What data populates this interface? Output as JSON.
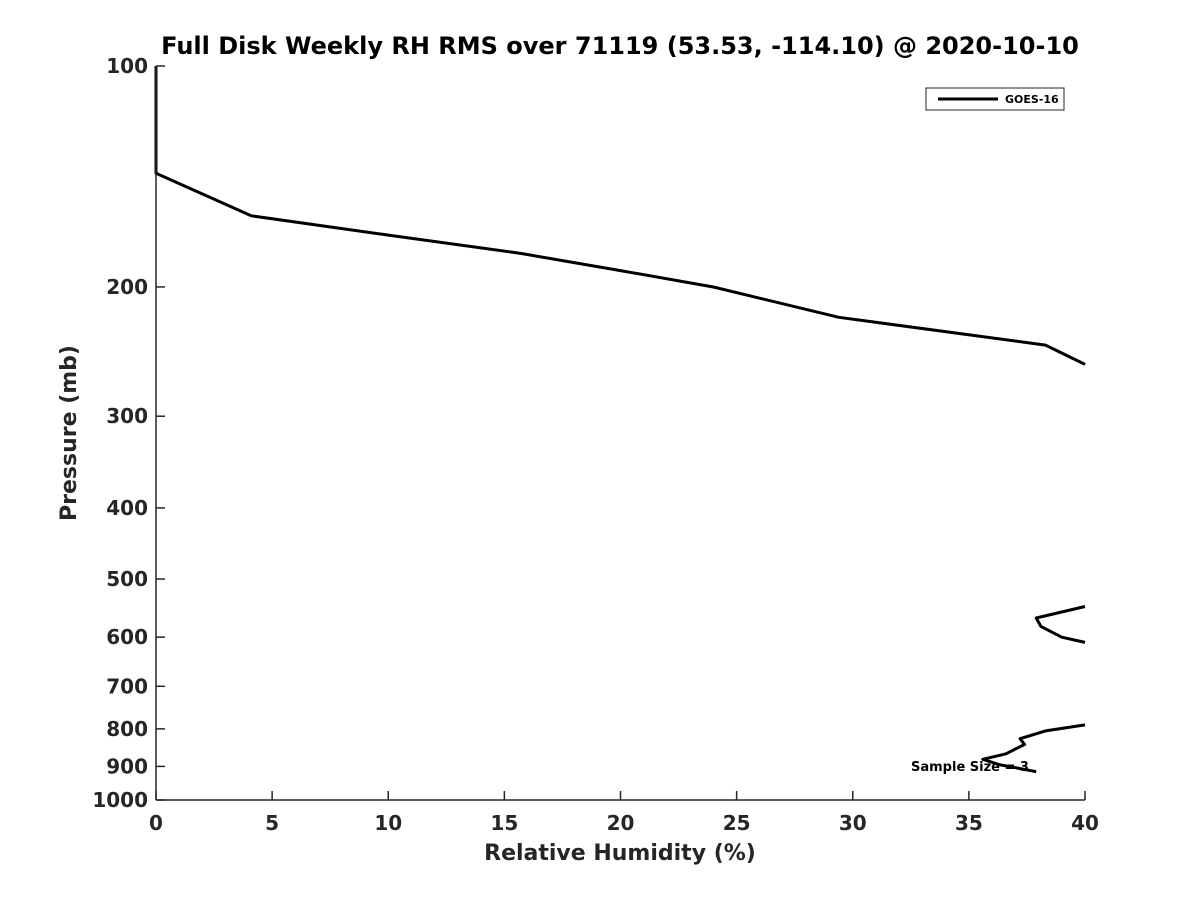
{
  "chart_data": {
    "type": "line",
    "title": "Full Disk Weekly RH RMS over 71119 (53.53, -114.10) @ 2020-10-10",
    "xlabel": "Relative Humidity (%)",
    "ylabel": "Pressure (mb)",
    "xlim": [
      0,
      40
    ],
    "ylim": [
      100,
      1000
    ],
    "yscale": "log",
    "y_reversed": true,
    "grid": false,
    "x_ticks": [
      0,
      5,
      10,
      15,
      20,
      25,
      30,
      35,
      40
    ],
    "x_tick_labels": [
      "0",
      "5",
      "10",
      "15",
      "20",
      "25",
      "30",
      "35",
      "40"
    ],
    "y_ticks": [
      100,
      200,
      300,
      400,
      500,
      600,
      700,
      800,
      900,
      1000
    ],
    "y_tick_labels": [
      "100",
      "200",
      "300",
      "400",
      "500",
      "600",
      "700",
      "800",
      "900",
      "1000"
    ],
    "legend": {
      "position": "top-right",
      "entries": [
        "GOES-16"
      ]
    },
    "annotation": "Sample Size = 3",
    "series": [
      {
        "name": "GOES-16",
        "color": "#000000",
        "segments": [
          [
            {
              "x": 0.0,
              "y": 100
            },
            {
              "x": 0.0,
              "y": 130
            },
            {
              "x": 0.0,
              "y": 140
            },
            {
              "x": 4.1,
              "y": 160
            },
            {
              "x": 10.0,
              "y": 170
            },
            {
              "x": 15.7,
              "y": 180
            },
            {
              "x": 20.0,
              "y": 190
            },
            {
              "x": 24.0,
              "y": 200
            },
            {
              "x": 29.4,
              "y": 220
            },
            {
              "x": 38.3,
              "y": 240
            },
            {
              "x": 40.0,
              "y": 255
            }
          ],
          [
            {
              "x": 40.0,
              "y": 545
            },
            {
              "x": 37.9,
              "y": 565
            },
            {
              "x": 38.1,
              "y": 580
            },
            {
              "x": 39.0,
              "y": 600
            },
            {
              "x": 40.0,
              "y": 610
            }
          ],
          [
            {
              "x": 40.0,
              "y": 790
            },
            {
              "x": 38.3,
              "y": 805
            },
            {
              "x": 37.2,
              "y": 825
            },
            {
              "x": 37.4,
              "y": 840
            },
            {
              "x": 36.6,
              "y": 865
            },
            {
              "x": 35.6,
              "y": 880
            },
            {
              "x": 36.3,
              "y": 895
            },
            {
              "x": 37.9,
              "y": 915
            }
          ]
        ]
      }
    ]
  }
}
